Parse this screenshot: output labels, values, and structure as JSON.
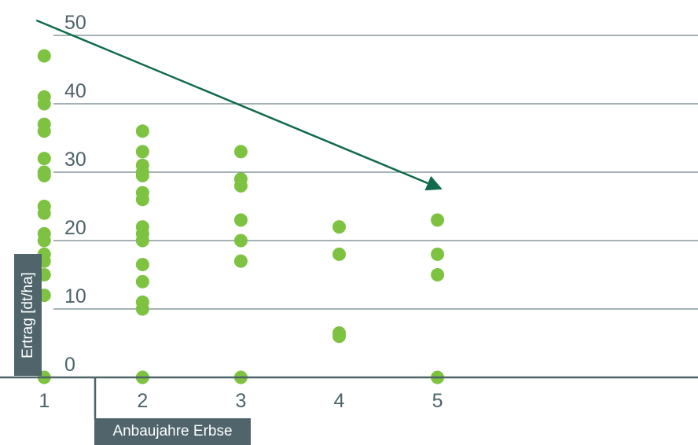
{
  "chart_data": {
    "type": "scatter",
    "xlabel": "Anbaujahre Erbse",
    "ylabel": "Ertrag [dt/ha]",
    "x_ticks": [
      "1",
      "2",
      "3",
      "4",
      "5"
    ],
    "y_ticks": [
      "0",
      "10",
      "20",
      "30",
      "40",
      "50"
    ],
    "xlim": [
      0.55,
      7.65
    ],
    "ylim": [
      0,
      50
    ],
    "grid": true,
    "colors": {
      "points": "#7dc241",
      "trend": "#0f6b4b",
      "axis": "#4d6469",
      "label_box": "#4f656b"
    },
    "series": [
      {
        "points": [
          {
            "x": 1,
            "y": 47
          },
          {
            "x": 1,
            "y": 41
          },
          {
            "x": 1,
            "y": 40
          },
          {
            "x": 1,
            "y": 37
          },
          {
            "x": 1,
            "y": 36
          },
          {
            "x": 1,
            "y": 32
          },
          {
            "x": 1,
            "y": 30
          },
          {
            "x": 1,
            "y": 29.5
          },
          {
            "x": 1,
            "y": 25
          },
          {
            "x": 1,
            "y": 24
          },
          {
            "x": 1,
            "y": 21
          },
          {
            "x": 1,
            "y": 20
          },
          {
            "x": 1,
            "y": 18
          },
          {
            "x": 1,
            "y": 17
          },
          {
            "x": 1,
            "y": 15
          },
          {
            "x": 1,
            "y": 12
          },
          {
            "x": 1,
            "y": 0
          },
          {
            "x": 2,
            "y": 36
          },
          {
            "x": 2,
            "y": 33
          },
          {
            "x": 2,
            "y": 31
          },
          {
            "x": 2,
            "y": 30
          },
          {
            "x": 2,
            "y": 29.5
          },
          {
            "x": 2,
            "y": 27
          },
          {
            "x": 2,
            "y": 26
          },
          {
            "x": 2,
            "y": 22
          },
          {
            "x": 2,
            "y": 21
          },
          {
            "x": 2,
            "y": 20
          },
          {
            "x": 2,
            "y": 16.5
          },
          {
            "x": 2,
            "y": 14
          },
          {
            "x": 2,
            "y": 11
          },
          {
            "x": 2,
            "y": 10
          },
          {
            "x": 2,
            "y": 0
          },
          {
            "x": 3,
            "y": 33
          },
          {
            "x": 3,
            "y": 29
          },
          {
            "x": 3,
            "y": 28
          },
          {
            "x": 3,
            "y": 23
          },
          {
            "x": 3,
            "y": 20
          },
          {
            "x": 3,
            "y": 17
          },
          {
            "x": 3,
            "y": 0
          },
          {
            "x": 4,
            "y": 22
          },
          {
            "x": 4,
            "y": 18
          },
          {
            "x": 4,
            "y": 6.5
          },
          {
            "x": 4,
            "y": 6
          },
          {
            "x": 5,
            "y": 23
          },
          {
            "x": 5,
            "y": 18
          },
          {
            "x": 5,
            "y": 15
          },
          {
            "x": 5,
            "y": 0
          }
        ]
      }
    ],
    "trend_arrow": {
      "from": {
        "x": 0.92,
        "y": 52.2
      },
      "to": {
        "x": 5.05,
        "y": 27.5
      }
    }
  }
}
